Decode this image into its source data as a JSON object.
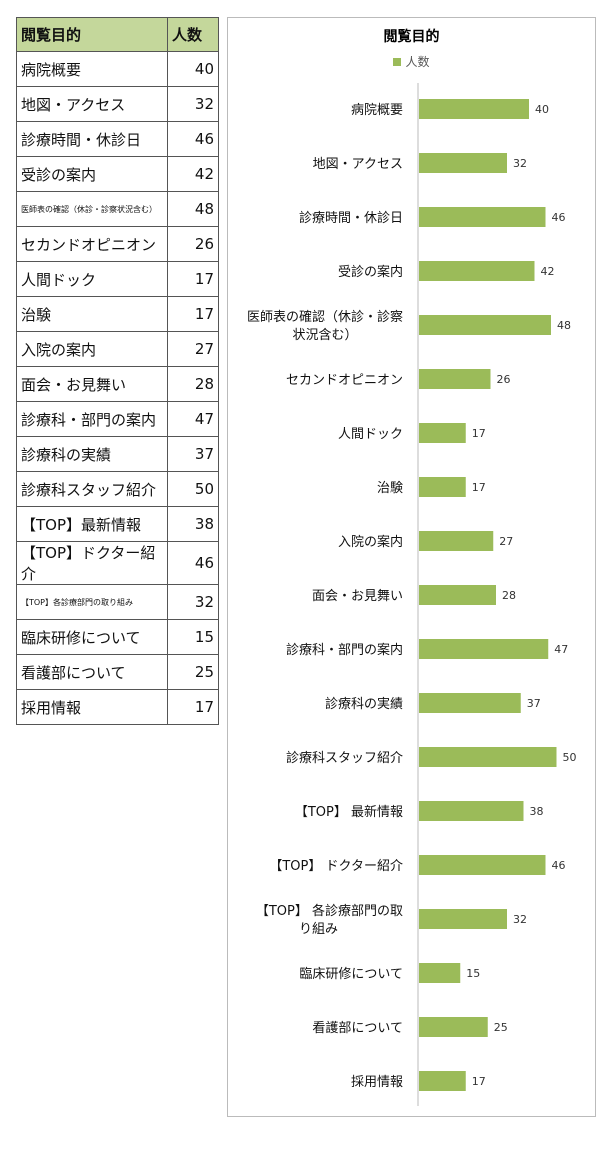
{
  "table": {
    "headers": [
      "閲覧目的",
      "人数"
    ]
  },
  "chart_data": {
    "type": "bar",
    "orientation": "horizontal",
    "title": "閲覧目的",
    "legend": [
      "人数"
    ],
    "legend_position": "top",
    "color": "#9bbb59",
    "categories": [
      "病院概要",
      "地図・アクセス",
      "診療時間・休診日",
      "受診の案内",
      "医師表の確認（休診・診察状況含む）",
      "セカンドオピニオン",
      "人間ドック",
      "治験",
      "入院の案内",
      "面会・お見舞い",
      "診療科・部門の案内",
      "診療科の実績",
      "診療科スタッフ紹介",
      "【TOP】最新情報",
      "【TOP】ドクター紹介",
      "【TOP】各診療部門の取り組み",
      "臨床研修について",
      "看護部について",
      "採用情報"
    ],
    "chart_labels": [
      "病院概要",
      "地図・アクセス",
      "診療時間・休診日",
      "受診の案内",
      "医師表の確認（休診・診察|状況含む）",
      "セカンドオピニオン",
      "人間ドック",
      "治験",
      "入院の案内",
      "面会・お見舞い",
      "診療科・部門の案内",
      "診療科の実績",
      "診療科スタッフ紹介",
      "【TOP】 最新情報",
      "【TOP】 ドクター紹介",
      "【TOP】 各診療部門の取|り組み",
      "臨床研修について",
      "看護部について",
      "採用情報"
    ],
    "values": [
      40,
      32,
      46,
      42,
      48,
      26,
      17,
      17,
      27,
      28,
      47,
      37,
      50,
      38,
      46,
      32,
      15,
      25,
      17
    ],
    "xlim": [
      0,
      55
    ]
  }
}
